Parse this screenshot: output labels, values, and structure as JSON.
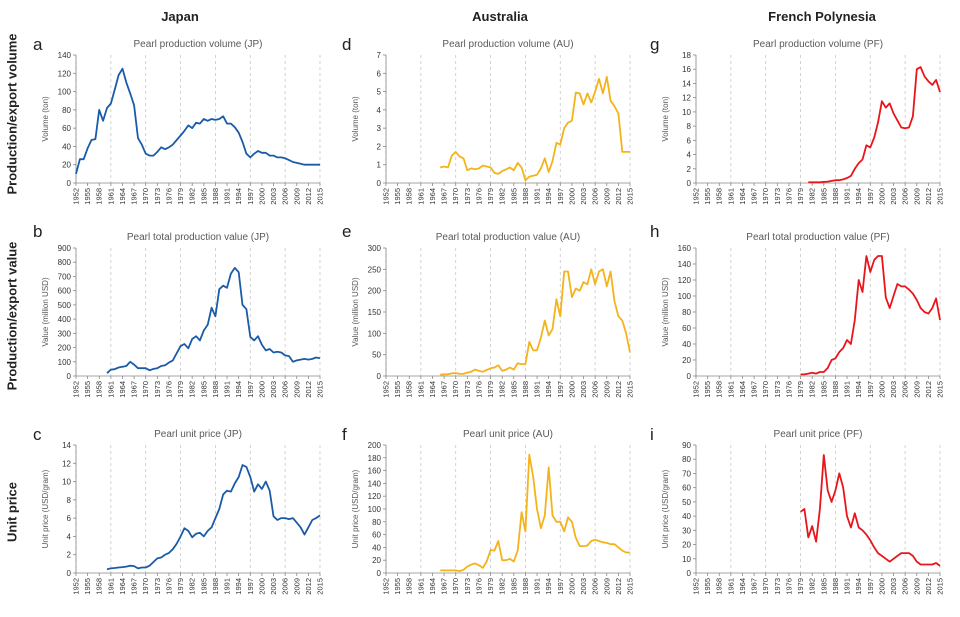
{
  "column_headers": [
    "Japan",
    "Australia",
    "French Polynesia"
  ],
  "row_labels": [
    "Production/export volume",
    "Production/export value",
    "Unit price"
  ],
  "chart_data": [
    {
      "id": "a",
      "type": "line",
      "title": "Pearl production volume (JP)",
      "ylabel": "Volume (ton)",
      "ylim": [
        0,
        140
      ],
      "yticks": [
        0,
        20,
        40,
        60,
        80,
        100,
        120,
        140
      ],
      "color": "#1a5ba8",
      "x": [
        1952,
        1953,
        1954,
        1955,
        1956,
        1957,
        1958,
        1959,
        1960,
        1961,
        1962,
        1963,
        1964,
        1965,
        1966,
        1967,
        1968,
        1969,
        1970,
        1971,
        1972,
        1973,
        1974,
        1975,
        1976,
        1977,
        1978,
        1979,
        1980,
        1981,
        1982,
        1983,
        1984,
        1985,
        1986,
        1987,
        1988,
        1989,
        1990,
        1991,
        1992,
        1993,
        1994,
        1995,
        1996,
        1997,
        1998,
        1999,
        2000,
        2001,
        2002,
        2003,
        2004,
        2005,
        2006,
        2007,
        2008,
        2009,
        2010,
        2011,
        2012,
        2013,
        2014,
        2015
      ],
      "y": [
        10,
        26,
        26,
        38,
        47,
        48,
        80,
        68,
        82,
        87,
        102,
        118,
        125,
        110,
        98,
        85,
        49,
        42,
        32,
        30,
        30,
        34,
        39,
        37,
        39,
        42,
        47,
        52,
        57,
        63,
        60,
        66,
        65,
        70,
        68,
        70,
        69,
        70,
        73,
        65,
        65,
        61,
        55,
        45,
        32,
        28,
        32,
        35,
        33,
        33,
        30,
        30,
        28,
        28,
        27,
        25,
        23,
        22,
        21,
        20,
        20,
        20,
        20,
        20
      ]
    },
    {
      "id": "d",
      "type": "line",
      "title": "Pearl production volume (AU)",
      "ylabel": "Volume (ton)",
      "ylim": [
        0,
        7
      ],
      "yticks": [
        0,
        1,
        2,
        3,
        4,
        5,
        6,
        7
      ],
      "color": "#f5b31b",
      "x": [
        1966,
        1967,
        1968,
        1969,
        1970,
        1971,
        1972,
        1973,
        1974,
        1975,
        1976,
        1977,
        1978,
        1979,
        1980,
        1981,
        1982,
        1983,
        1984,
        1985,
        1986,
        1987,
        1988,
        1989,
        1990,
        1991,
        1992,
        1993,
        1994,
        1995,
        1996,
        1997,
        1998,
        1999,
        2000,
        2001,
        2002,
        2003,
        2004,
        2005,
        2006,
        2007,
        2008,
        2009,
        2010,
        2011,
        2012,
        2013,
        2014,
        2015
      ],
      "y": [
        0.85,
        0.9,
        0.85,
        1.5,
        1.7,
        1.45,
        1.35,
        0.7,
        0.8,
        0.75,
        0.8,
        0.95,
        0.9,
        0.85,
        0.55,
        0.5,
        0.65,
        0.75,
        0.85,
        0.7,
        1.1,
        0.85,
        0.15,
        0.35,
        0.4,
        0.45,
        0.8,
        1.35,
        0.6,
        1.2,
        2.2,
        2.1,
        3.0,
        3.3,
        3.4,
        4.95,
        4.9,
        4.3,
        4.9,
        4.4,
        5.0,
        5.7,
        4.9,
        5.8,
        4.5,
        4.2,
        3.8,
        1.7,
        1.7,
        1.7
      ]
    },
    {
      "id": "g",
      "type": "line",
      "title": "Pearl production volume (PF)",
      "ylabel": "Volume (ton)",
      "ylim": [
        0,
        18
      ],
      "yticks": [
        0,
        2,
        4,
        6,
        8,
        10,
        12,
        14,
        16,
        18
      ],
      "color": "#e8161b",
      "x": [
        1981,
        1982,
        1983,
        1984,
        1985,
        1986,
        1987,
        1988,
        1989,
        1990,
        1991,
        1992,
        1993,
        1994,
        1995,
        1996,
        1997,
        1998,
        1999,
        2000,
        2001,
        2002,
        2003,
        2004,
        2005,
        2006,
        2007,
        2008,
        2009,
        2010,
        2011,
        2012,
        2013,
        2014,
        2015
      ],
      "y": [
        0.1,
        0.1,
        0.1,
        0.1,
        0.15,
        0.2,
        0.3,
        0.4,
        0.4,
        0.5,
        0.7,
        1.0,
        2.0,
        2.8,
        3.3,
        5.3,
        5.0,
        6.4,
        8.5,
        11.5,
        10.6,
        11.2,
        9.8,
        8.8,
        7.8,
        7.7,
        7.8,
        9.4,
        16.0,
        16.3,
        15.0,
        14.3,
        13.8,
        14.5,
        12.8
      ]
    },
    {
      "id": "b",
      "type": "line",
      "title": "Pearl total production value (JP)",
      "ylabel": "Value (million USD)",
      "ylim": [
        0,
        900
      ],
      "yticks": [
        0,
        100,
        200,
        300,
        400,
        500,
        600,
        700,
        800,
        900
      ],
      "color": "#1a5ba8",
      "x": [
        1960,
        1961,
        1962,
        1963,
        1964,
        1965,
        1966,
        1967,
        1968,
        1969,
        1970,
        1971,
        1972,
        1973,
        1974,
        1975,
        1976,
        1977,
        1978,
        1979,
        1980,
        1981,
        1982,
        1983,
        1984,
        1985,
        1986,
        1987,
        1988,
        1989,
        1990,
        1991,
        1992,
        1993,
        1994,
        1995,
        1996,
        1997,
        1998,
        1999,
        2000,
        2001,
        2002,
        2003,
        2004,
        2005,
        2006,
        2007,
        2008,
        2009,
        2010,
        2011,
        2012,
        2013,
        2014,
        2015
      ],
      "y": [
        20,
        45,
        48,
        60,
        65,
        70,
        100,
        80,
        55,
        55,
        55,
        40,
        50,
        55,
        70,
        75,
        95,
        110,
        160,
        210,
        225,
        195,
        260,
        280,
        250,
        320,
        360,
        480,
        420,
        610,
        635,
        620,
        720,
        760,
        730,
        500,
        470,
        275,
        250,
        280,
        220,
        180,
        190,
        165,
        170,
        165,
        145,
        140,
        100,
        110,
        115,
        120,
        115,
        120,
        130,
        125
      ]
    },
    {
      "id": "e",
      "type": "line",
      "title": "Pearl total production value (AU)",
      "ylabel": "Value (million USD)",
      "ylim": [
        0,
        300
      ],
      "yticks": [
        0,
        50,
        100,
        150,
        200,
        250,
        300
      ],
      "color": "#f5b31b",
      "x": [
        1966,
        1967,
        1968,
        1969,
        1970,
        1971,
        1972,
        1973,
        1974,
        1975,
        1976,
        1977,
        1978,
        1979,
        1980,
        1981,
        1982,
        1983,
        1984,
        1985,
        1986,
        1987,
        1988,
        1989,
        1990,
        1991,
        1992,
        1993,
        1994,
        1995,
        1996,
        1997,
        1998,
        1999,
        2000,
        2001,
        2002,
        2003,
        2004,
        2005,
        2006,
        2007,
        2008,
        2009,
        2010,
        2011,
        2012,
        2013,
        2014,
        2015
      ],
      "y": [
        3,
        4,
        4,
        6,
        7,
        5,
        5,
        8,
        10,
        15,
        12,
        10,
        14,
        18,
        20,
        25,
        12,
        15,
        20,
        15,
        30,
        28,
        28,
        80,
        60,
        60,
        90,
        130,
        95,
        110,
        180,
        140,
        245,
        245,
        185,
        205,
        200,
        220,
        215,
        250,
        215,
        245,
        250,
        210,
        245,
        175,
        140,
        130,
        100,
        55
      ]
    },
    {
      "id": "h",
      "type": "line",
      "title": "Pearl total production value (PF)",
      "ylabel": "Value (million USD)",
      "ylim": [
        0,
        160
      ],
      "yticks": [
        0,
        20,
        40,
        60,
        80,
        100,
        120,
        140,
        160
      ],
      "color": "#e8161b",
      "x": [
        1979,
        1980,
        1981,
        1982,
        1983,
        1984,
        1985,
        1986,
        1987,
        1988,
        1989,
        1990,
        1991,
        1992,
        1993,
        1994,
        1995,
        1996,
        1997,
        1998,
        1999,
        2000,
        2001,
        2002,
        2003,
        2004,
        2005,
        2006,
        2007,
        2008,
        2009,
        2010,
        2011,
        2012,
        2013,
        2014,
        2015
      ],
      "y": [
        2,
        2,
        3,
        4,
        3,
        5,
        5,
        10,
        20,
        22,
        30,
        35,
        45,
        40,
        70,
        120,
        105,
        150,
        130,
        145,
        150,
        150,
        98,
        85,
        100,
        115,
        112,
        112,
        108,
        103,
        95,
        85,
        80,
        78,
        85,
        97,
        70
      ]
    },
    {
      "id": "c",
      "type": "line",
      "title": "Pearl unit price (JP)",
      "ylabel": "Unit price (USD/gram)",
      "ylim": [
        0,
        14
      ],
      "yticks": [
        0,
        2,
        4,
        6,
        8,
        10,
        12,
        14
      ],
      "color": "#1a5ba8",
      "x": [
        1960,
        1961,
        1962,
        1963,
        1964,
        1965,
        1966,
        1967,
        1968,
        1969,
        1970,
        1971,
        1972,
        1973,
        1974,
        1975,
        1976,
        1977,
        1978,
        1979,
        1980,
        1981,
        1982,
        1983,
        1984,
        1985,
        1986,
        1987,
        1988,
        1989,
        1990,
        1991,
        1992,
        1993,
        1994,
        1995,
        1996,
        1997,
        1998,
        1999,
        2000,
        2001,
        2002,
        2003,
        2004,
        2005,
        2006,
        2007,
        2008,
        2009,
        2010,
        2011,
        2012,
        2013,
        2014,
        2015
      ],
      "y": [
        0.4,
        0.5,
        0.55,
        0.6,
        0.65,
        0.7,
        0.8,
        0.75,
        0.5,
        0.6,
        0.6,
        0.8,
        1.2,
        1.6,
        1.7,
        2.0,
        2.2,
        2.6,
        3.2,
        4.0,
        4.9,
        4.6,
        3.9,
        4.3,
        4.4,
        4.0,
        4.6,
        5.0,
        6.0,
        7.0,
        8.6,
        9.0,
        8.9,
        9.8,
        10.5,
        11.8,
        11.6,
        10.5,
        8.9,
        9.7,
        9.2,
        10.0,
        9.0,
        6.2,
        5.8,
        6.0,
        6.0,
        5.9,
        6.0,
        5.5,
        5.0,
        4.2,
        5.0,
        5.8,
        6.0,
        6.3
      ]
    },
    {
      "id": "f",
      "type": "line",
      "title": "Pearl unit price (AU)",
      "ylabel": "Unit price (USD/gram)",
      "ylim": [
        0,
        200
      ],
      "yticks": [
        0,
        20,
        40,
        60,
        80,
        100,
        120,
        140,
        160,
        180,
        200
      ],
      "color": "#f5b31b",
      "x": [
        1966,
        1967,
        1968,
        1969,
        1970,
        1971,
        1972,
        1973,
        1974,
        1975,
        1976,
        1977,
        1978,
        1979,
        1980,
        1981,
        1982,
        1983,
        1984,
        1985,
        1986,
        1987,
        1988,
        1989,
        1990,
        1991,
        1992,
        1993,
        1994,
        1995,
        1996,
        1997,
        1998,
        1999,
        2000,
        2001,
        2002,
        2003,
        2004,
        2005,
        2006,
        2007,
        2008,
        2009,
        2010,
        2011,
        2012,
        2013,
        2014,
        2015
      ],
      "y": [
        4,
        4,
        4,
        4,
        4,
        3,
        5,
        10,
        13,
        15,
        12,
        8,
        18,
        36,
        35,
        50,
        20,
        20,
        22,
        18,
        35,
        95,
        65,
        185,
        150,
        100,
        70,
        90,
        165,
        90,
        80,
        80,
        65,
        87,
        80,
        55,
        42,
        42,
        43,
        50,
        52,
        50,
        48,
        47,
        45,
        45,
        40,
        35,
        32,
        32
      ]
    },
    {
      "id": "i",
      "type": "line",
      "title": "Pearl unit price (PF)",
      "ylabel": "Unit price (USD/gram)",
      "ylim": [
        0,
        90
      ],
      "yticks": [
        0,
        10,
        20,
        30,
        40,
        50,
        60,
        70,
        80,
        90
      ],
      "color": "#e8161b",
      "x": [
        1979,
        1980,
        1981,
        1982,
        1983,
        1984,
        1985,
        1986,
        1987,
        1988,
        1989,
        1990,
        1991,
        1992,
        1993,
        1994,
        1995,
        1996,
        1997,
        1998,
        1999,
        2000,
        2001,
        2002,
        2003,
        2004,
        2005,
        2006,
        2007,
        2008,
        2009,
        2010,
        2011,
        2012,
        2013,
        2014,
        2015
      ],
      "y": [
        43,
        45,
        25,
        33,
        22,
        45,
        83,
        58,
        50,
        58,
        70,
        60,
        40,
        32,
        42,
        32,
        30,
        27,
        23,
        18,
        14,
        12,
        10,
        8,
        10,
        12,
        14,
        14,
        14,
        12,
        8,
        6,
        6,
        6,
        6,
        7,
        5
      ]
    }
  ],
  "x_tick_labels": [
    "1952",
    "1955",
    "1958",
    "1961",
    "1964",
    "1967",
    "1970",
    "1973",
    "1976",
    "1979",
    "1982",
    "1985",
    "1988",
    "1991",
    "1994",
    "1997",
    "2000",
    "2003",
    "2006",
    "2009",
    "2012",
    "2015"
  ]
}
